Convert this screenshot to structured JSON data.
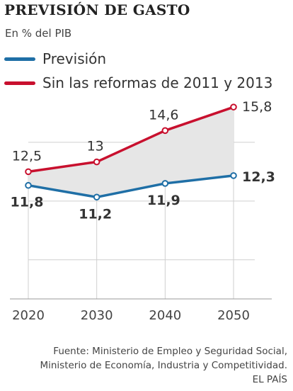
{
  "title": "PREVISIÓN DE GASTO",
  "subtitle": "En % del PIB",
  "legend": [
    {
      "label": "Previsión",
      "color": "#1f6fa6"
    },
    {
      "label": "Sin las reformas de 2011 y 2013",
      "color": "#c8102e"
    }
  ],
  "chart_data": {
    "type": "line",
    "x": [
      2020,
      2030,
      2040,
      2050
    ],
    "x_tick_labels": [
      "2020",
      "2030",
      "2040",
      "2050"
    ],
    "ylim": [
      6,
      17
    ],
    "grid": true,
    "shaded_between_series": true,
    "series": [
      {
        "name": "Previsión",
        "values": [
          11.8,
          11.2,
          11.9,
          12.3
        ],
        "labels": [
          "11,8",
          "11,2",
          "11,9",
          "12,3"
        ],
        "color": "#1f6fa6"
      },
      {
        "name": "Sin las reformas de 2011 y 2013",
        "values": [
          12.5,
          13,
          14.6,
          15.8
        ],
        "labels": [
          "12,5",
          "13",
          "14,6",
          "15,8"
        ],
        "color": "#c8102e"
      }
    ]
  },
  "footer": {
    "line1": "Fuente: Ministerio de Empleo y Seguridad Social,",
    "line2": "Ministerio de Economía, Industria y Competitividad.",
    "credit": "EL PAÍS"
  }
}
